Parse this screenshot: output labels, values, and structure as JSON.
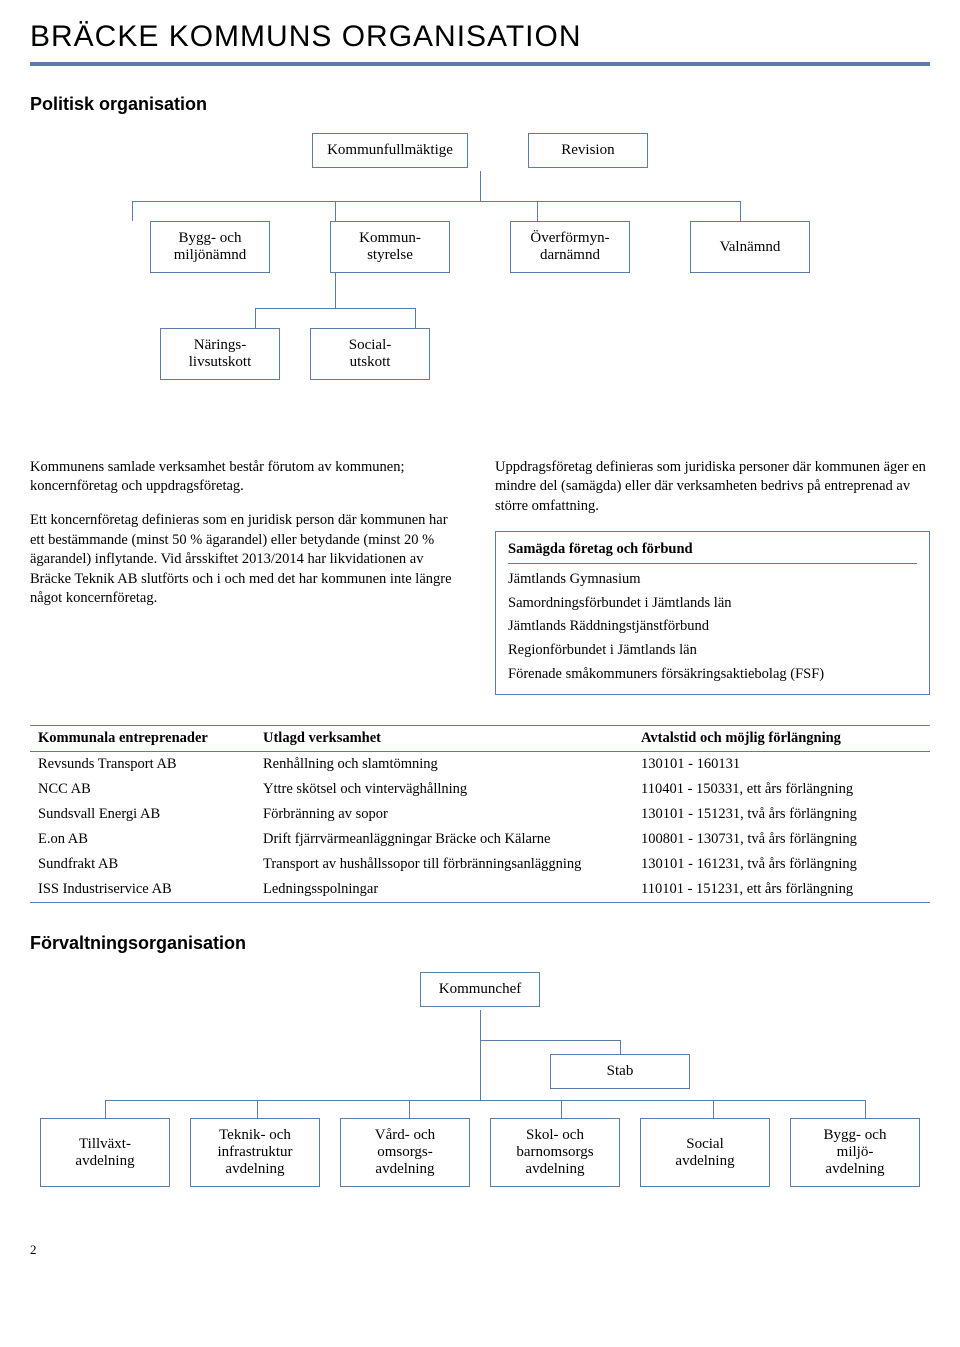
{
  "page_title": "BRÄCKE KOMMUNS ORGANISATION",
  "section1_title": "Politisk organisation",
  "section2_title": "Förvaltningsorganisation",
  "colors": {
    "border": "#5b7ca6",
    "text": "#000000",
    "background": "#ffffff"
  },
  "political_chart": {
    "type": "tree",
    "top": [
      {
        "label": "Kommunfullmäktige"
      },
      {
        "label": "Revision"
      }
    ],
    "mid": [
      {
        "label": "Bygg- och\nmiljönämnd"
      },
      {
        "label": "Kommun-\nstyrelse"
      },
      {
        "label": "Överförmyn-\ndarnämnd"
      },
      {
        "label": "Valnämnd"
      }
    ],
    "bottom": [
      {
        "label": "Närings-\nlivsutskott"
      },
      {
        "label": "Social-\nutskott"
      }
    ]
  },
  "body_left_p1": "Kommunens samlade verksamhet består förutom av kommunen; koncernföretag och uppdragsföretag.",
  "body_left_p2": "Ett koncernföretag definieras som en juridisk person där kommunen har ett bestämmande (minst 50 % ägarandel) eller betydande (minst 20 % ägarandel) inflytande. Vid årsskiftet 2013/2014 har likvidationen av Bräcke Teknik AB slutförts och i och med det har kommunen inte längre något koncernföretag.",
  "body_right_p1": "Uppdragsföretag definieras som juridiska personer där kommunen äger en mindre del (samägda) eller där verksamheten bedrivs på entreprenad av större omfattning.",
  "joint_box": {
    "title": "Samägda företag och förbund",
    "items": [
      "Jämtlands Gymnasium",
      "Samordningsförbundet i Jämtlands län",
      "Jämtlands Räddningstjänstförbund",
      "Regionförbundet i Jämtlands län",
      "Förenade småkommuners försäkringsaktiebolag (FSF)"
    ]
  },
  "ent_table": {
    "columns": [
      "Kommunala entreprenader",
      "Utlagd verksamhet",
      "Avtalstid och möjlig förlängning"
    ],
    "rows": [
      [
        "Revsunds Transport AB",
        "Renhållning och slamtömning",
        "130101 - 160131"
      ],
      [
        "NCC AB",
        "Yttre skötsel och vinterväghållning",
        "110401 - 150331, ett års förlängning"
      ],
      [
        "Sundsvall Energi AB",
        "Förbränning av sopor",
        "130101 - 151231, två års förlängning"
      ],
      [
        "E.on AB",
        "Drift fjärrvärmeanläggningar Bräcke och Kälarne",
        "100801 - 130731, två års förlängning"
      ],
      [
        "Sundfrakt AB",
        "Transport av hushållssopor till förbränningsanläggning",
        "130101 - 161231, två års förlängning"
      ],
      [
        "ISS Industriservice AB",
        "Ledningsspolningar",
        "110101 - 151231, ett års förlängning"
      ]
    ],
    "col_widths": [
      "25%",
      "42%",
      "33%"
    ]
  },
  "admin_chart": {
    "type": "tree",
    "top": "Kommunchef",
    "mid": "Stab",
    "bottom": [
      "Tillväxt-\navdelning",
      "Teknik- och\ninfrastruktur\navdelning",
      "Vård- och\nomsorgs-\navdelning",
      "Skol- och\nbarnomsorgs\navdelning",
      "Social\navdelning",
      "Bygg- och\nmiljö-\navdelning"
    ]
  },
  "page_number": "2",
  "font": {
    "body_family": "Times New Roman",
    "heading_family": "Arial",
    "title_size_pt": 23,
    "h2_size_pt": 13,
    "body_size_pt": 11
  }
}
